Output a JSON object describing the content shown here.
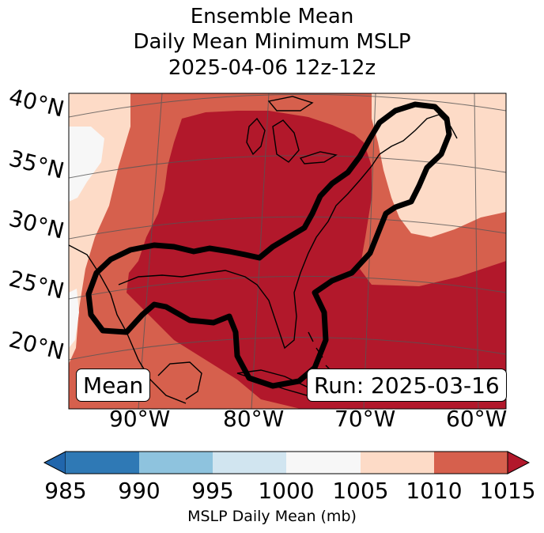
{
  "title": {
    "line1": "Ensemble Mean",
    "line2": "Daily Mean Minimum MSLP",
    "line3": "2025-04-06 12z-12z"
  },
  "map": {
    "lat_labels": [
      "40°N",
      "35°N",
      "30°N",
      "25°N",
      "20°N"
    ],
    "lon_labels": [
      "90°W",
      "80°W",
      "70°W",
      "60°W"
    ],
    "left_box": "Mean",
    "right_box": "Run: 2025-03-16",
    "colors": {
      "c985_990": "#2f79b5",
      "c990_995": "#8ec3de",
      "c995_1000": "#d1e5f0",
      "c1000_1005": "#f7f7f7",
      "c1005_1010": "#fddbc7",
      "c1010_1015": "#d6604d",
      "c1015_plus": "#b2182b",
      "below_985": "#2166ac"
    }
  },
  "colorbar": {
    "ticks": [
      "985",
      "990",
      "995",
      "1000",
      "1005",
      "1010",
      "1015"
    ],
    "label": "MSLP Daily Mean (mb)"
  }
}
